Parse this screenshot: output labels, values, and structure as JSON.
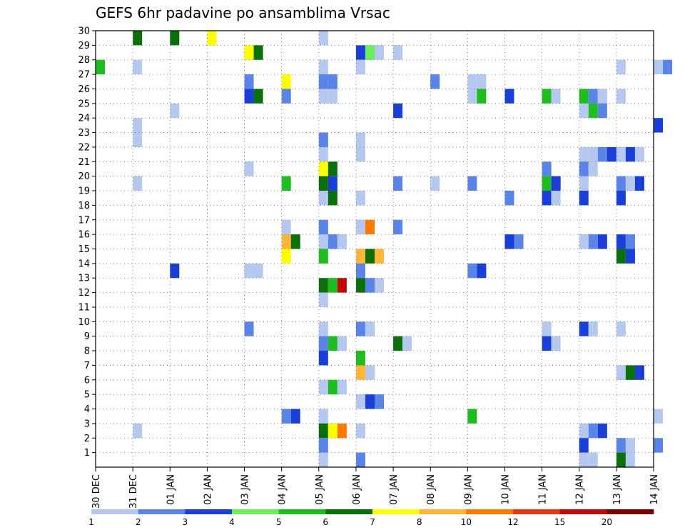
{
  "chart_data": {
    "type": "heatmap",
    "title": "GEFS 6hr padavine po ansamblima Vrsac",
    "x_tick_labels": [
      "30 DEC",
      "31 DEC",
      "01 JAN",
      "02 JAN",
      "03 JAN",
      "04 JAN",
      "05 JAN",
      "06 JAN",
      "07 JAN",
      "08 JAN",
      "09 JAN",
      "10 JAN",
      "11 JAN",
      "12 JAN",
      "13 JAN",
      "14 JAN"
    ],
    "y_tick_labels": [
      "1",
      "2",
      "3",
      "4",
      "5",
      "6",
      "7",
      "8",
      "9",
      "10",
      "11",
      "12",
      "13",
      "14",
      "15",
      "16",
      "17",
      "18",
      "19",
      "20",
      "21",
      "22",
      "23",
      "24",
      "25",
      "26",
      "27",
      "28",
      "29",
      "30"
    ],
    "xlim_days": [
      0,
      15
    ],
    "ylim_members": [
      0,
      30
    ],
    "time_step_hours": 6,
    "colorbar": {
      "labels": [
        "1",
        "2",
        "3",
        "4",
        "5",
        "6",
        "7",
        "8",
        "10",
        "12",
        "15",
        "20"
      ],
      "colors": [
        "#b4c8f0",
        "#5a84e8",
        "#1a3ed8",
        "#6aee5a",
        "#1ebe1e",
        "#0a700a",
        "#ffff00",
        "#ffb43a",
        "#ff7a00",
        "#e63a14",
        "#c00a0a",
        "#780000"
      ]
    },
    "cells": [
      [
        5,
        1,
        30
      ],
      [
        5,
        2,
        30
      ],
      [
        6,
        3,
        30
      ],
      [
        0,
        6,
        30
      ],
      [
        2,
        7,
        29
      ],
      [
        3,
        7,
        29
      ],
      [
        6,
        4,
        29
      ],
      [
        5,
        4,
        29
      ],
      [
        0,
        7,
        29
      ],
      [
        0,
        8,
        29
      ],
      [
        0,
        1,
        28
      ],
      [
        0,
        7,
        28
      ],
      [
        4,
        0,
        28
      ],
      [
        0,
        6,
        28
      ],
      [
        0,
        15,
        28
      ],
      [
        0,
        14,
        28
      ],
      [
        1,
        15,
        28
      ],
      [
        1,
        4,
        27
      ],
      [
        6,
        5,
        27
      ],
      [
        1,
        6,
        27
      ],
      [
        1,
        6,
        27
      ],
      [
        1,
        9,
        27
      ],
      [
        0,
        10,
        27
      ],
      [
        0,
        10,
        27
      ],
      [
        2,
        4,
        26
      ],
      [
        5,
        4,
        26
      ],
      [
        1,
        5,
        26
      ],
      [
        0,
        6,
        26
      ],
      [
        0,
        6,
        26
      ],
      [
        0,
        10,
        26
      ],
      [
        4,
        10,
        26
      ],
      [
        2,
        11,
        26
      ],
      [
        4,
        12,
        26
      ],
      [
        0,
        12,
        26
      ],
      [
        4,
        13,
        26
      ],
      [
        1,
        13,
        26
      ],
      [
        0,
        13,
        26
      ],
      [
        0,
        14,
        26
      ],
      [
        0,
        2,
        25
      ],
      [
        2,
        8,
        25
      ],
      [
        0,
        13,
        25
      ],
      [
        4,
        13,
        25
      ],
      [
        1,
        13,
        25
      ],
      [
        0,
        1,
        24
      ],
      [
        2,
        15,
        24
      ],
      [
        0,
        1,
        23
      ],
      [
        1,
        6,
        23
      ],
      [
        0,
        7,
        23
      ],
      [
        0,
        6,
        22
      ],
      [
        0,
        7,
        22
      ],
      [
        0,
        13,
        22
      ],
      [
        0,
        13,
        22
      ],
      [
        1,
        13,
        22
      ],
      [
        2,
        13,
        22
      ],
      [
        0,
        14,
        22
      ],
      [
        2,
        14,
        22
      ],
      [
        0,
        14,
        22
      ],
      [
        0,
        4,
        21
      ],
      [
        6,
        6,
        21
      ],
      [
        5,
        6,
        21
      ],
      [
        1,
        12,
        21
      ],
      [
        1,
        13,
        21
      ],
      [
        0,
        13,
        21
      ],
      [
        0,
        1,
        20
      ],
      [
        4,
        5,
        20
      ],
      [
        5,
        6,
        20
      ],
      [
        2,
        6,
        20
      ],
      [
        1,
        8,
        20
      ],
      [
        0,
        9,
        20
      ],
      [
        1,
        10,
        20
      ],
      [
        4,
        12,
        20
      ],
      [
        2,
        12,
        20
      ],
      [
        0,
        13,
        20
      ],
      [
        1,
        14,
        20
      ],
      [
        0,
        14,
        20
      ],
      [
        2,
        14,
        20
      ],
      [
        0,
        6,
        19
      ],
      [
        5,
        6,
        19
      ],
      [
        0,
        7,
        19
      ],
      [
        1,
        11,
        19
      ],
      [
        2,
        12,
        19
      ],
      [
        0,
        12,
        19
      ],
      [
        2,
        13,
        19
      ],
      [
        2,
        14,
        19
      ],
      [
        1,
        6,
        17
      ],
      [
        0,
        5,
        17
      ],
      [
        0,
        7,
        17
      ],
      [
        8,
        7,
        17
      ],
      [
        1,
        8,
        17
      ],
      [
        7,
        5,
        16
      ],
      [
        5,
        5,
        16
      ],
      [
        0,
        6,
        16
      ],
      [
        1,
        6,
        16
      ],
      [
        0,
        6,
        16
      ],
      [
        2,
        11,
        16
      ],
      [
        1,
        11,
        16
      ],
      [
        0,
        13,
        16
      ],
      [
        1,
        13,
        16
      ],
      [
        2,
        13,
        16
      ],
      [
        2,
        14,
        16
      ],
      [
        1,
        14,
        16
      ],
      [
        6,
        5,
        15
      ],
      [
        4,
        6,
        15
      ],
      [
        7,
        7,
        15
      ],
      [
        5,
        7,
        15
      ],
      [
        7,
        7,
        15
      ],
      [
        5,
        14,
        15
      ],
      [
        2,
        14,
        15
      ],
      [
        2,
        2,
        14
      ],
      [
        0,
        4,
        14
      ],
      [
        0,
        4,
        14
      ],
      [
        1,
        7,
        14
      ],
      [
        1,
        10,
        14
      ],
      [
        2,
        10,
        14
      ],
      [
        5,
        6,
        13
      ],
      [
        4,
        6,
        13
      ],
      [
        10,
        6,
        13
      ],
      [
        5,
        7,
        13
      ],
      [
        1,
        7,
        13
      ],
      [
        0,
        7,
        13
      ],
      [
        0,
        6,
        12
      ],
      [
        1,
        4,
        10
      ],
      [
        0,
        6,
        10
      ],
      [
        1,
        7,
        10
      ],
      [
        0,
        7,
        10
      ],
      [
        0,
        12,
        10
      ],
      [
        2,
        13,
        10
      ],
      [
        0,
        13,
        10
      ],
      [
        0,
        14,
        10
      ],
      [
        1,
        6,
        9
      ],
      [
        4,
        6,
        9
      ],
      [
        0,
        6,
        9
      ],
      [
        5,
        8,
        9
      ],
      [
        0,
        8,
        9
      ],
      [
        2,
        12,
        9
      ],
      [
        0,
        12,
        9
      ],
      [
        2,
        6,
        8
      ],
      [
        4,
        7,
        8
      ],
      [
        7,
        7,
        7
      ],
      [
        0,
        7,
        7
      ],
      [
        0,
        14,
        7
      ],
      [
        5,
        14,
        7
      ],
      [
        2,
        14,
        7
      ],
      [
        0,
        6,
        6
      ],
      [
        4,
        6,
        6
      ],
      [
        0,
        6,
        6
      ],
      [
        0,
        7,
        5
      ],
      [
        2,
        7,
        5
      ],
      [
        1,
        7,
        5
      ],
      [
        1,
        5,
        4
      ],
      [
        2,
        5,
        4
      ],
      [
        0,
        6,
        4
      ],
      [
        4,
        10,
        4
      ],
      [
        0,
        15,
        4
      ],
      [
        0,
        1,
        3
      ],
      [
        5,
        6,
        3
      ],
      [
        6,
        6,
        3
      ],
      [
        8,
        6,
        3
      ],
      [
        0,
        7,
        3
      ],
      [
        0,
        13,
        3
      ],
      [
        1,
        13,
        3
      ],
      [
        2,
        13,
        3
      ],
      [
        1,
        6,
        2
      ],
      [
        2,
        13,
        2
      ],
      [
        1,
        14,
        2
      ],
      [
        0,
        14,
        2
      ],
      [
        1,
        15,
        2
      ],
      [
        0,
        6,
        1
      ],
      [
        1,
        7,
        1
      ],
      [
        0,
        13,
        1
      ],
      [
        0,
        13,
        1
      ],
      [
        5,
        14,
        1
      ],
      [
        0,
        14,
        1
      ]
    ]
  }
}
